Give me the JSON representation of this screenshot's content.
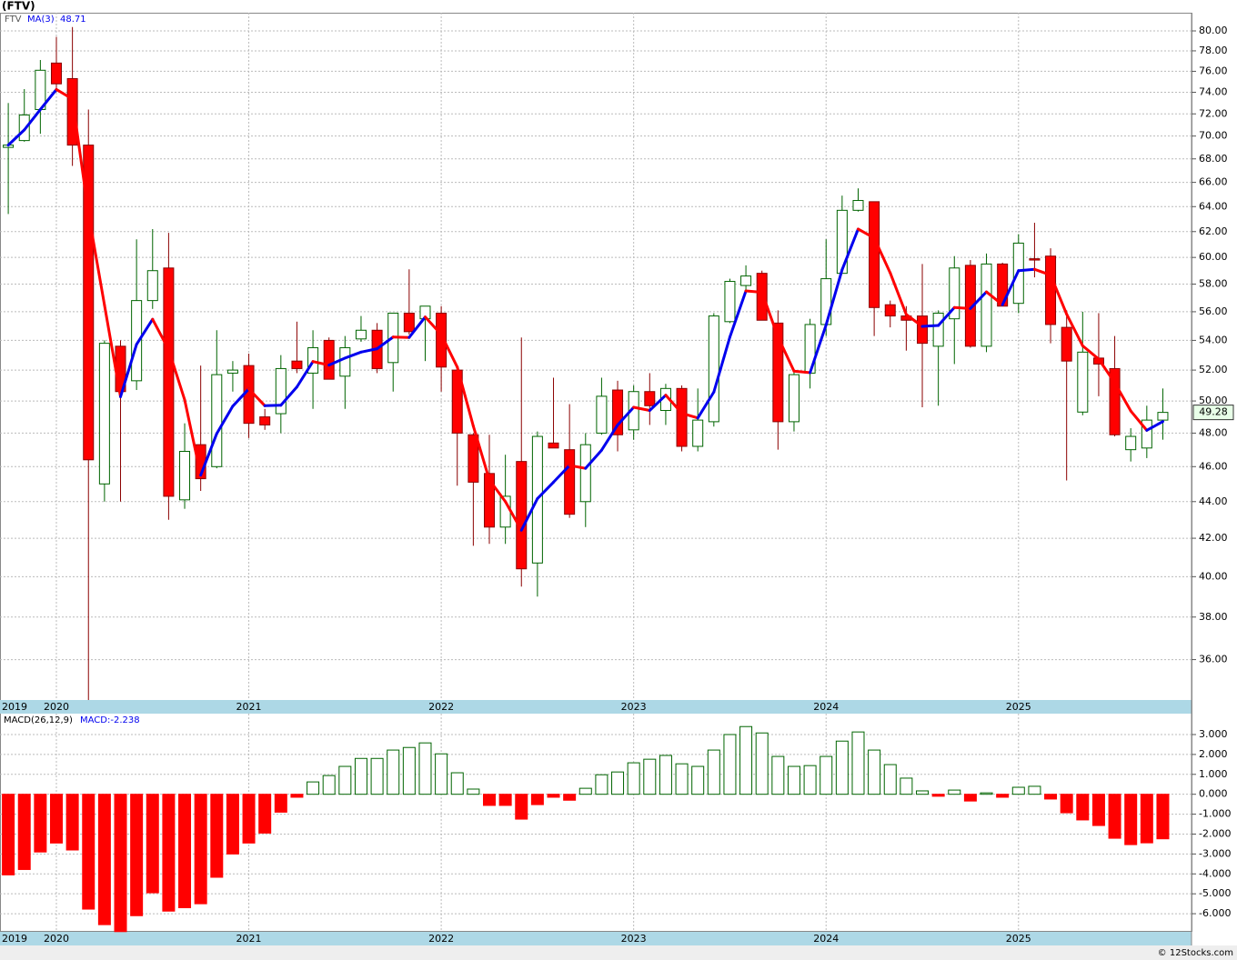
{
  "chart_data": [
    {
      "type": "candlestick",
      "title": "(FTV)",
      "symbol": "FTV",
      "categories": [
        "2019",
        null,
        null,
        "2020",
        null,
        null,
        null,
        null,
        null,
        null,
        null,
        null,
        null,
        null,
        null,
        "2021",
        null,
        null,
        null,
        null,
        null,
        null,
        null,
        null,
        null,
        null,
        null,
        "2022",
        null,
        null,
        null,
        null,
        null,
        null,
        null,
        null,
        null,
        null,
        null,
        "2023",
        null,
        null,
        null,
        null,
        null,
        null,
        null,
        null,
        null,
        null,
        null,
        "2024",
        null,
        null,
        null,
        null,
        null,
        null,
        null,
        null,
        null,
        null,
        null,
        "2025",
        null,
        null,
        null,
        null,
        null,
        null,
        null,
        null,
        null
      ],
      "open": [
        69.0,
        69.6,
        72.4,
        76.8,
        75.3,
        69.2,
        45.0,
        53.6,
        51.3,
        56.8,
        59.2,
        44.1,
        47.3,
        46.0,
        51.8,
        52.3,
        49.0,
        49.2,
        52.6,
        51.8,
        54.0,
        51.6,
        54.1,
        54.7,
        52.5,
        55.9,
        55.5,
        55.9,
        52.0,
        47.9,
        45.6,
        42.6,
        46.3,
        40.7,
        47.4,
        47.0,
        44.0,
        48.0,
        50.7,
        48.2,
        50.6,
        49.4,
        50.8,
        47.2,
        48.7,
        55.3,
        57.9,
        58.8,
        55.2,
        48.7,
        51.8,
        55.1,
        58.8,
        63.7,
        64.4,
        56.5,
        55.7,
        55.7,
        53.6,
        55.5,
        59.4,
        53.6,
        59.5,
        56.6,
        59.9,
        60.1,
        54.9,
        49.3,
        52.8,
        52.1,
        47.0,
        47.1,
        48.8
      ],
      "high": [
        73.0,
        74.3,
        77.1,
        79.4,
        80.4,
        72.4,
        54.0,
        54.0,
        61.4,
        62.2,
        61.9,
        48.6,
        52.3,
        54.7,
        52.6,
        53.1,
        49.5,
        53.0,
        55.3,
        54.7,
        54.2,
        54.3,
        55.7,
        55.2,
        55.9,
        59.1,
        56.4,
        56.4,
        52.3,
        48.0,
        47.9,
        46.7,
        54.2,
        48.1,
        51.5,
        49.8,
        48.0,
        51.5,
        51.3,
        51.0,
        51.8,
        51.1,
        51.0,
        50.8,
        55.9,
        58.4,
        59.4,
        59.0,
        56.1,
        51.9,
        55.5,
        61.4,
        64.9,
        65.5,
        64.4,
        56.8,
        56.4,
        59.5,
        56.1,
        60.1,
        59.8,
        60.3,
        59.6,
        61.8,
        62.7,
        60.7,
        56.1,
        56.0,
        55.9,
        54.3,
        48.3,
        49.7,
        50.8
      ],
      "low": [
        63.4,
        69.5,
        70.2,
        74.0,
        67.4,
        34.2,
        44.0,
        44.0,
        50.7,
        56.2,
        43.0,
        43.6,
        44.6,
        45.9,
        50.6,
        47.7,
        48.2,
        48.0,
        51.8,
        49.5,
        51.6,
        49.5,
        53.9,
        51.8,
        50.6,
        54.4,
        52.6,
        50.6,
        44.9,
        41.6,
        41.7,
        41.7,
        39.5,
        39.0,
        47.1,
        43.1,
        42.6,
        47.9,
        46.9,
        47.6,
        48.5,
        48.5,
        46.9,
        46.9,
        48.4,
        55.2,
        57.5,
        55.4,
        47.0,
        48.1,
        50.8,
        54.3,
        58.8,
        63.6,
        54.3,
        54.9,
        53.3,
        49.6,
        49.7,
        52.4,
        53.5,
        53.2,
        56.4,
        55.9,
        58.5,
        53.8,
        45.2,
        49.1,
        50.3,
        47.8,
        46.3,
        46.5,
        47.6
      ],
      "close": [
        69.2,
        71.9,
        76.1,
        74.8,
        69.2,
        46.4,
        53.8,
        50.6,
        56.8,
        59.0,
        44.3,
        46.9,
        45.3,
        51.7,
        52.0,
        48.6,
        48.5,
        52.1,
        52.1,
        53.5,
        51.4,
        53.5,
        54.7,
        52.1,
        55.9,
        54.6,
        56.4,
        52.2,
        48.0,
        45.1,
        42.6,
        44.3,
        40.4,
        47.8,
        47.1,
        43.3,
        47.3,
        50.3,
        47.9,
        50.6,
        49.7,
        50.8,
        47.2,
        48.8,
        55.7,
        58.2,
        58.6,
        55.4,
        48.7,
        51.7,
        55.1,
        58.4,
        63.7,
        64.5,
        56.3,
        55.7,
        55.4,
        53.8,
        55.9,
        59.2,
        53.6,
        59.5,
        56.4,
        61.1,
        59.8,
        55.1,
        52.6,
        53.2,
        52.4,
        47.9,
        47.8,
        48.8,
        49.28
      ],
      "up_color": "#006400",
      "down_color": "#ff0000",
      "ylim": [
        34.2,
        81.87
      ],
      "log": true,
      "grid": true,
      "yticks": [
        {
          "value": 36,
          "label": "36.00"
        },
        {
          "value": 38,
          "label": "38.00"
        },
        {
          "value": 40,
          "label": "40.00"
        },
        {
          "value": 42,
          "label": "42.00"
        },
        {
          "value": 44,
          "label": "44.00"
        },
        {
          "value": 46,
          "label": "46.00"
        },
        {
          "value": 48,
          "label": "48.00"
        },
        {
          "value": 50,
          "label": "50.00"
        },
        {
          "value": 52,
          "label": "52.00"
        },
        {
          "value": 54,
          "label": "54.00"
        },
        {
          "value": 56,
          "label": "56.00"
        },
        {
          "value": 58,
          "label": "58.00"
        },
        {
          "value": 60,
          "label": "60.00"
        },
        {
          "value": 62,
          "label": "62.00"
        },
        {
          "value": 64,
          "label": "64.00"
        },
        {
          "value": 66,
          "label": "66.00"
        },
        {
          "value": 68,
          "label": "68.00"
        },
        {
          "value": 70,
          "label": "70.00"
        },
        {
          "value": 72,
          "label": "72.00"
        },
        {
          "value": 74,
          "label": "74.00"
        },
        {
          "value": 76,
          "label": "76.00"
        },
        {
          "value": 78,
          "label": "78.00"
        },
        {
          "value": 80,
          "label": "80.00"
        }
      ],
      "ma": {
        "name": "MA(3)",
        "up_color": "#0000ee",
        "down_color": "#ff0000",
        "values": [
          69.2,
          70.55,
          72.4,
          74.27,
          73.37,
          63.47,
          56.47,
          50.27,
          53.73,
          55.47,
          53.37,
          50.07,
          45.5,
          47.97,
          49.67,
          50.77,
          49.7,
          49.73,
          50.9,
          52.57,
          52.33,
          52.8,
          53.2,
          53.43,
          54.23,
          54.2,
          55.63,
          54.4,
          52.2,
          48.43,
          45.23,
          44.0,
          42.43,
          44.17,
          45.1,
          46.07,
          45.9,
          46.97,
          48.5,
          49.6,
          49.4,
          50.37,
          49.23,
          48.93,
          50.57,
          54.23,
          57.5,
          57.4,
          54.23,
          51.93,
          51.83,
          55.07,
          59.07,
          62.2,
          61.5,
          58.83,
          55.8,
          54.97,
          55.03,
          56.3,
          56.23,
          57.43,
          56.5,
          59.0,
          59.1,
          58.67,
          55.83,
          53.63,
          52.73,
          51.17,
          49.37,
          48.17,
          48.71
        ]
      }
    },
    {
      "type": "bar",
      "name": "MACD(26,12,9)",
      "label": "MACD:",
      "categories": [
        "2019",
        null,
        null,
        "2020",
        null,
        null,
        null,
        null,
        null,
        null,
        null,
        null,
        null,
        null,
        null,
        "2021",
        null,
        null,
        null,
        null,
        null,
        null,
        null,
        null,
        null,
        null,
        null,
        "2022",
        null,
        null,
        null,
        null,
        null,
        null,
        null,
        null,
        null,
        null,
        null,
        "2023",
        null,
        null,
        null,
        null,
        null,
        null,
        null,
        null,
        null,
        null,
        null,
        "2024",
        null,
        null,
        null,
        null,
        null,
        null,
        null,
        null,
        null,
        null,
        null,
        "2025",
        null,
        null,
        null,
        null,
        null,
        null,
        null,
        null,
        null
      ],
      "values": [
        -4.05,
        -3.78,
        -2.9,
        -2.45,
        -2.8,
        -5.77,
        -6.55,
        -6.9,
        -6.1,
        -4.95,
        -5.87,
        -5.7,
        -5.5,
        -4.17,
        -3.0,
        -2.45,
        -1.95,
        -0.9,
        -0.15,
        0.62,
        0.94,
        1.4,
        1.8,
        1.8,
        2.22,
        2.35,
        2.58,
        2.03,
        1.08,
        0.26,
        -0.56,
        -0.56,
        -1.25,
        -0.52,
        -0.15,
        -0.3,
        0.3,
        0.98,
        1.12,
        1.58,
        1.76,
        1.95,
        1.53,
        1.4,
        2.22,
        3.0,
        3.4,
        3.08,
        1.9,
        1.4,
        1.44,
        1.9,
        2.67,
        3.13,
        2.22,
        1.49,
        0.81,
        0.17,
        -0.1,
        0.21,
        -0.34,
        0.07,
        -0.15,
        0.35,
        0.4,
        -0.24,
        -0.93,
        -1.29,
        -1.57,
        -2.21,
        -2.53,
        -2.44,
        -2.238
      ],
      "pos_color": "#006400",
      "neg_color": "#ff0000",
      "ylim": [
        -6.91,
        4.05
      ],
      "grid": true,
      "yticks": [
        {
          "value": -6,
          "label": "-6.000"
        },
        {
          "value": -5,
          "label": "-5.000"
        },
        {
          "value": -4,
          "label": "-4.000"
        },
        {
          "value": -3,
          "label": "-3.000"
        },
        {
          "value": -2,
          "label": "-2.000"
        },
        {
          "value": -1,
          "label": "-1.000"
        },
        {
          "value": 0,
          "label": "0.000"
        },
        {
          "value": 1,
          "label": "1.000"
        },
        {
          "value": 2,
          "label": "2.000"
        },
        {
          "value": 3,
          "label": "3.000"
        }
      ]
    }
  ],
  "footer": "© 12Stocks.com"
}
